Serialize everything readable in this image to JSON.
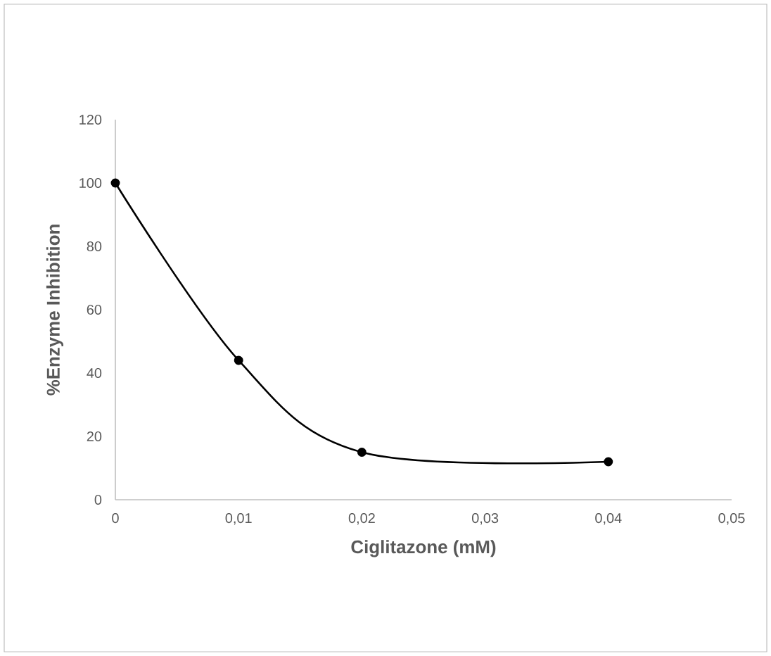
{
  "chart_data": {
    "type": "line",
    "xlabel": "Ciglitazone (mM)",
    "ylabel": "%Enzyme Inhibition",
    "x": [
      0,
      0.01,
      0.02,
      0.04
    ],
    "series": [
      {
        "color": "#000000",
        "values": [
          100,
          44,
          15,
          12
        ]
      }
    ],
    "marker": "circle",
    "xlim": [
      0,
      0.05
    ],
    "ylim": [
      0,
      120
    ],
    "xticks": [
      0,
      {
        "value": 0.01,
        "label": "0,01"
      },
      {
        "value": 0.02,
        "label": "0,02"
      },
      {
        "value": 0.03,
        "label": "0,03"
      },
      {
        "value": 0.04,
        "label": "0,04"
      },
      {
        "value": 0.05,
        "label": "0,05"
      }
    ],
    "yticks": [
      0,
      20,
      40,
      60,
      80,
      100,
      120
    ],
    "grid": false
  }
}
